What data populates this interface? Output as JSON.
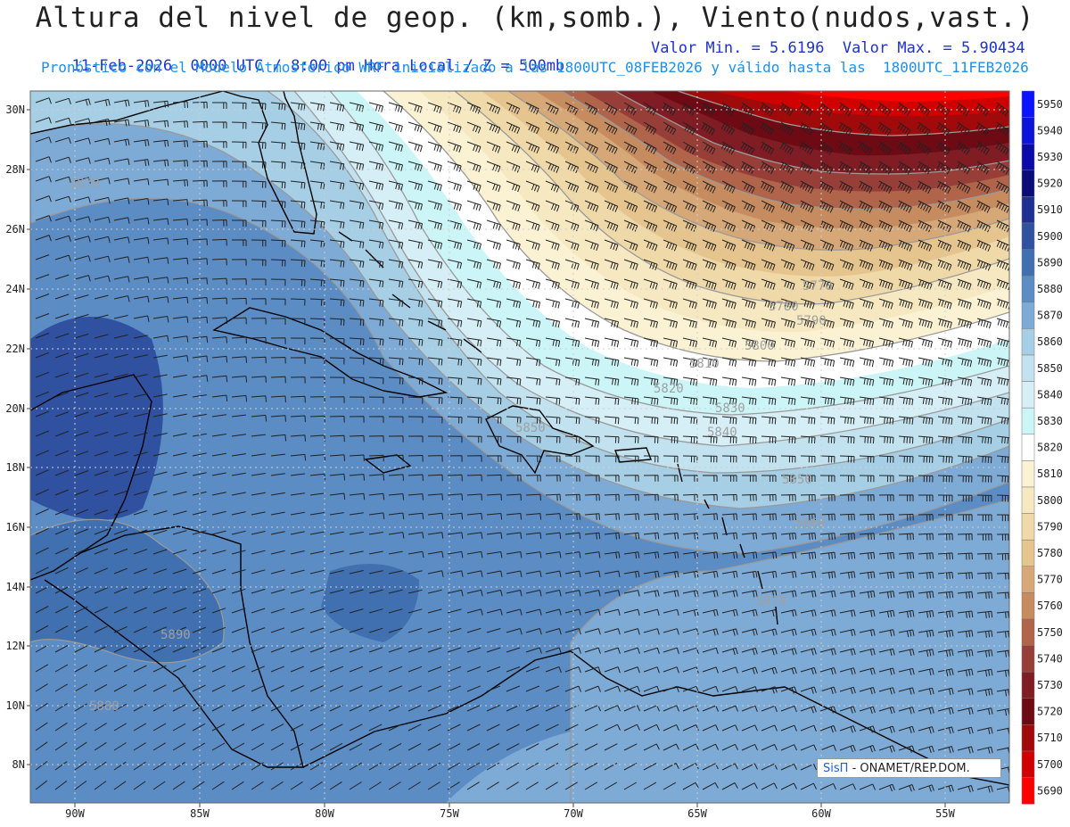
{
  "header": {
    "title": "Altura del nivel de geop. (km,somb.), Viento(nudos,vast.)",
    "line1_left": "11-Feb-2026  0000 UTC / 8:00 pm Hora Local / Z = 500mb",
    "line1_right": "Valor Min. = 5.6196  Valor Max. = 5.90434",
    "line2": "Pronóstico con el Modelo Atmosferico WRF inicializado a las 1800UTC_08FEB2026 y válido hasta las  1800UTC_11FEB2026"
  },
  "map": {
    "lat_labels": [
      "30N",
      "28N",
      "26N",
      "24N",
      "22N",
      "20N",
      "18N",
      "16N",
      "14N",
      "12N",
      "10N",
      "8N"
    ],
    "lon_labels": [
      "90W",
      "85W",
      "80W",
      "75W",
      "70W",
      "65W",
      "60W",
      "55W"
    ],
    "contour_labels": [
      "5870",
      "5770",
      "5780",
      "5790",
      "5800",
      "5810",
      "5820",
      "5830",
      "5840",
      "5850",
      "5850",
      "5860",
      "5870",
      "5890",
      "5880"
    ]
  },
  "colorbar": {
    "levels": [
      "5950",
      "5940",
      "5930",
      "5920",
      "5910",
      "5900",
      "5890",
      "5880",
      "5870",
      "5860",
      "5850",
      "5840",
      "5830",
      "5820",
      "5810",
      "5800",
      "5790",
      "5780",
      "5770",
      "5760",
      "5750",
      "5740",
      "5730",
      "5720",
      "5710",
      "5700",
      "5690"
    ],
    "colors": [
      "#0a12ff",
      "#0c14d8",
      "#0a0aa8",
      "#0c0c78",
      "#203090",
      "#3050a0",
      "#4070b0",
      "#5b8cc4",
      "#7eaad6",
      "#a6cfe6",
      "#c2e2ef",
      "#d6eef6",
      "#ccf5f8",
      "#ffffff",
      "#fbf2d4",
      "#f6e8c0",
      "#efd9a8",
      "#e5c48e",
      "#d6a878",
      "#c68c60",
      "#b0644a",
      "#983e38",
      "#801c24",
      "#6e0a14",
      "#a00a0a",
      "#d00000",
      "#ff0000"
    ]
  },
  "credit": {
    "brand": "SisΠ",
    "text": "- ONAMET/REP.DOM."
  }
}
